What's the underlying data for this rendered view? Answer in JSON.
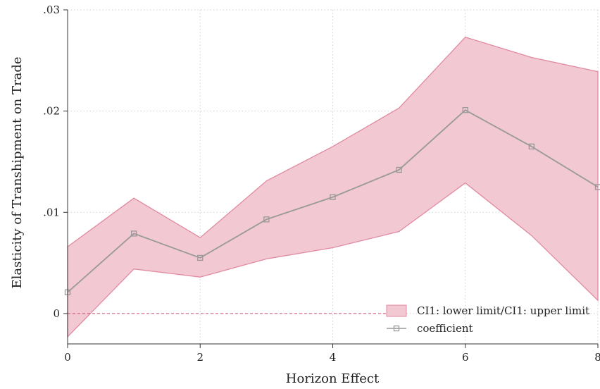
{
  "chart_data": {
    "type": "area",
    "title": "",
    "xlabel": "Horizon Effect",
    "ylabel": "Elasticity of Transhipment on Trade",
    "x": [
      0,
      1,
      2,
      3,
      4,
      5,
      6,
      7,
      8
    ],
    "xlim": [
      0,
      8
    ],
    "ylim": [
      -0.003,
      0.03
    ],
    "xticks": [
      0,
      2,
      4,
      6,
      8
    ],
    "xtick_labels": [
      "0",
      "2",
      "4",
      "6",
      "8"
    ],
    "yticks": [
      0,
      0.01,
      0.02,
      0.03
    ],
    "ytick_labels": [
      "0",
      ".01",
      ".02",
      ".03"
    ],
    "grid": true,
    "legend_position": "bottom-right",
    "series": [
      {
        "name": "CI1: lower limit/CI1: upper limit",
        "kind": "band",
        "lower": [
          -0.0023,
          0.0044,
          0.0036,
          0.0054,
          0.0065,
          0.0081,
          0.0129,
          0.0077,
          0.0013
        ],
        "upper": [
          0.0066,
          0.0114,
          0.0075,
          0.0131,
          0.0165,
          0.0203,
          0.0273,
          0.0253,
          0.0239
        ],
        "color": "#f2c8d2",
        "stroke": "#e08aa0"
      },
      {
        "name": "coefficient",
        "kind": "line",
        "values": [
          0.0021,
          0.0079,
          0.0055,
          0.0093,
          0.0115,
          0.0142,
          0.0201,
          0.0165,
          0.0125
        ],
        "color": "#999999"
      }
    ],
    "reference_line": {
      "y": 0,
      "x_end": 5,
      "color": "#c9506e"
    }
  }
}
